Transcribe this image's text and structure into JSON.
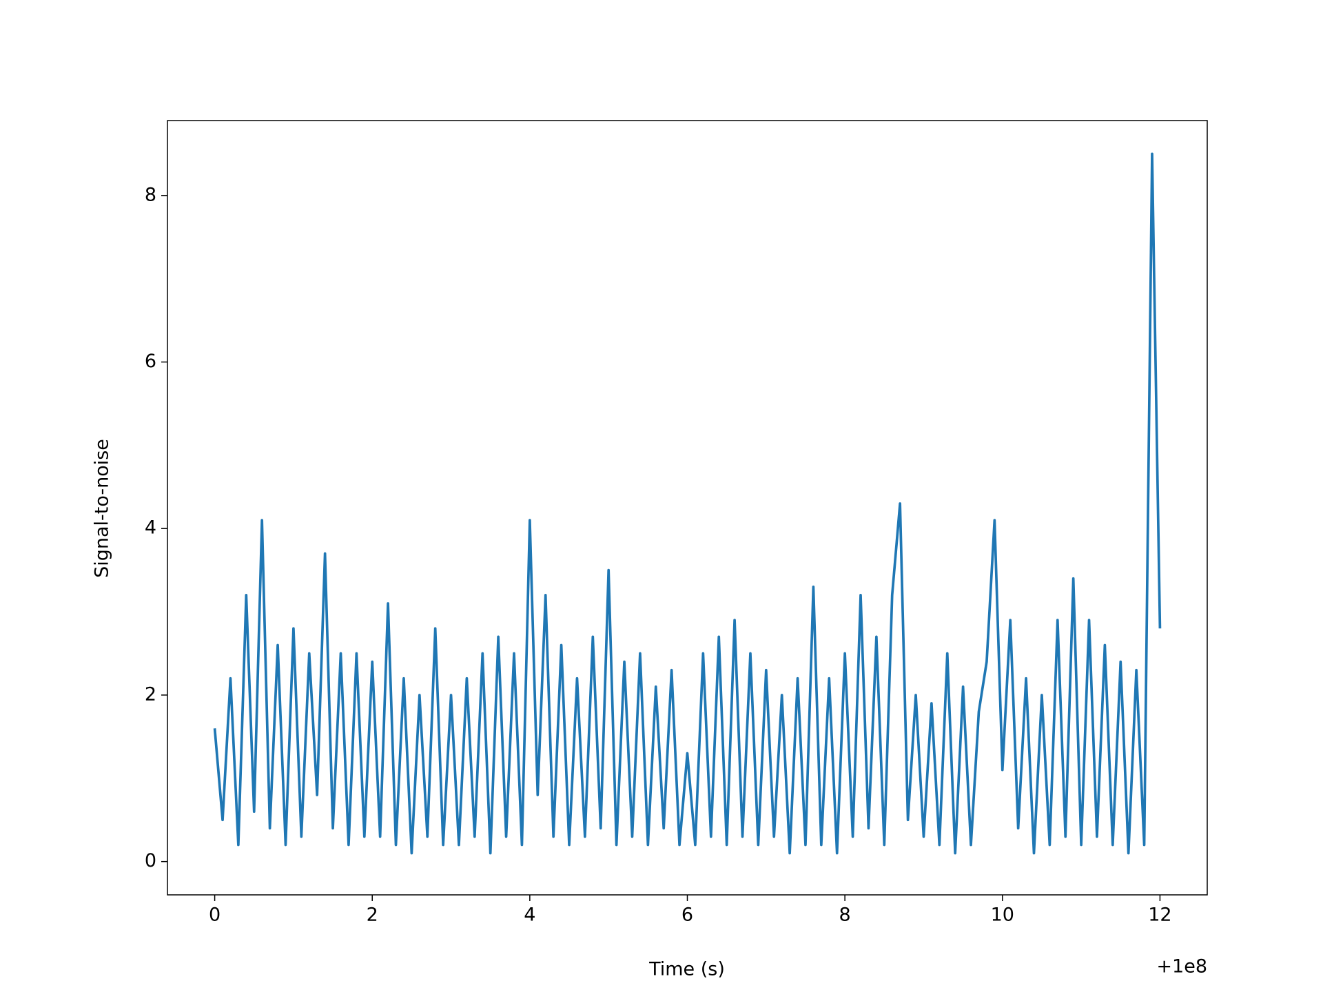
{
  "chart_data": {
    "type": "line",
    "xlabel": "Time (s)",
    "ylabel": "Signal-to-noise",
    "x_offset_text": "+1e8",
    "x": [
      0.0,
      0.1,
      0.2,
      0.3,
      0.4,
      0.5,
      0.6,
      0.7,
      0.8,
      0.9,
      1.0,
      1.1,
      1.2,
      1.3,
      1.4,
      1.5,
      1.6,
      1.7,
      1.8,
      1.9,
      2.0,
      2.1,
      2.2,
      2.3,
      2.4,
      2.5,
      2.6,
      2.7,
      2.8,
      2.9,
      3.0,
      3.1,
      3.2,
      3.3,
      3.4,
      3.5,
      3.6,
      3.7,
      3.8,
      3.9,
      4.0,
      4.1,
      4.2,
      4.3,
      4.4,
      4.5,
      4.6,
      4.7,
      4.8,
      4.9,
      5.0,
      5.1,
      5.2,
      5.3,
      5.4,
      5.5,
      5.6,
      5.7,
      5.8,
      5.9,
      6.0,
      6.1,
      6.2,
      6.3,
      6.4,
      6.5,
      6.6,
      6.7,
      6.8,
      6.9,
      7.0,
      7.1,
      7.2,
      7.3,
      7.4,
      7.5,
      7.6,
      7.7,
      7.8,
      7.9,
      8.0,
      8.1,
      8.2,
      8.3,
      8.4,
      8.5,
      8.6,
      8.7,
      8.8,
      8.9,
      9.0,
      9.1,
      9.2,
      9.3,
      9.4,
      9.5,
      9.6,
      9.7,
      9.8,
      9.9,
      10.0,
      10.1,
      10.2,
      10.3,
      10.4,
      10.5,
      10.6,
      10.7,
      10.8,
      10.9,
      11.0,
      11.1,
      11.2,
      11.3,
      11.4,
      11.5,
      11.6,
      11.7,
      11.8,
      11.9,
      12.0
    ],
    "series": [
      {
        "color": "#1f77b4",
        "values": [
          1.6,
          0.5,
          2.2,
          0.2,
          3.2,
          0.6,
          4.1,
          0.4,
          2.6,
          0.2,
          2.8,
          0.3,
          2.5,
          0.8,
          3.7,
          0.4,
          2.5,
          0.2,
          2.5,
          0.3,
          2.4,
          0.3,
          3.1,
          0.2,
          2.2,
          0.1,
          2.0,
          0.3,
          2.8,
          0.2,
          2.0,
          0.2,
          2.2,
          0.3,
          2.5,
          0.1,
          2.7,
          0.3,
          2.5,
          0.2,
          4.1,
          0.8,
          3.2,
          0.3,
          2.6,
          0.2,
          2.2,
          0.3,
          2.7,
          0.4,
          3.5,
          0.2,
          2.4,
          0.3,
          2.5,
          0.2,
          2.1,
          0.4,
          2.3,
          0.2,
          1.3,
          0.2,
          2.5,
          0.3,
          2.7,
          0.2,
          2.9,
          0.3,
          2.5,
          0.2,
          2.3,
          0.3,
          2.0,
          0.1,
          2.2,
          0.2,
          3.3,
          0.2,
          2.2,
          0.1,
          2.5,
          0.3,
          3.2,
          0.4,
          2.7,
          0.2,
          3.2,
          4.3,
          0.5,
          2.0,
          0.3,
          1.9,
          0.2,
          2.5,
          0.1,
          2.1,
          0.2,
          1.8,
          2.4,
          4.1,
          1.1,
          2.9,
          0.4,
          2.2,
          0.1,
          2.0,
          0.2,
          2.9,
          0.3,
          3.4,
          0.2,
          2.9,
          0.3,
          2.6,
          0.2,
          2.4,
          0.1,
          2.3,
          0.2,
          8.5,
          2.8
        ]
      }
    ],
    "xlim": [
      -0.6,
      12.6
    ],
    "ylim": [
      -0.4,
      8.9
    ],
    "xticks": [
      0,
      2,
      4,
      6,
      8,
      10,
      12
    ],
    "yticks": [
      0,
      2,
      4,
      6,
      8
    ]
  }
}
